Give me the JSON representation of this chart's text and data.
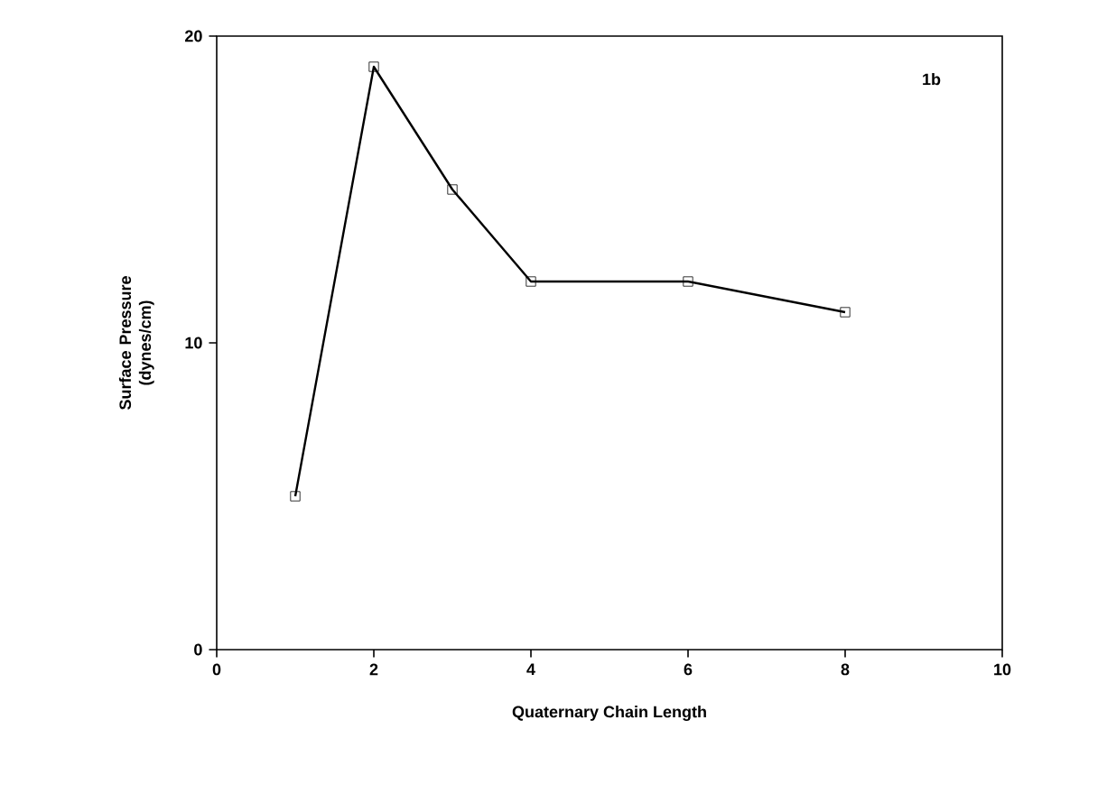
{
  "chart_data": {
    "type": "line",
    "xlabel": "Quaternary Chain Length",
    "ylabel": "Surface Pressure (dynes/cm)",
    "annotations": [
      "1b"
    ],
    "x": [
      1,
      2,
      3,
      4,
      6,
      8
    ],
    "values": [
      5,
      19,
      15,
      12,
      12,
      11
    ],
    "color": "#000000",
    "xlim": [
      0,
      10
    ],
    "xticks": [
      0,
      2,
      4,
      6,
      8,
      10
    ],
    "ylim": [
      0,
      20
    ],
    "yticks": [
      0,
      10,
      20
    ],
    "marker": "square",
    "line_style": "solid"
  }
}
